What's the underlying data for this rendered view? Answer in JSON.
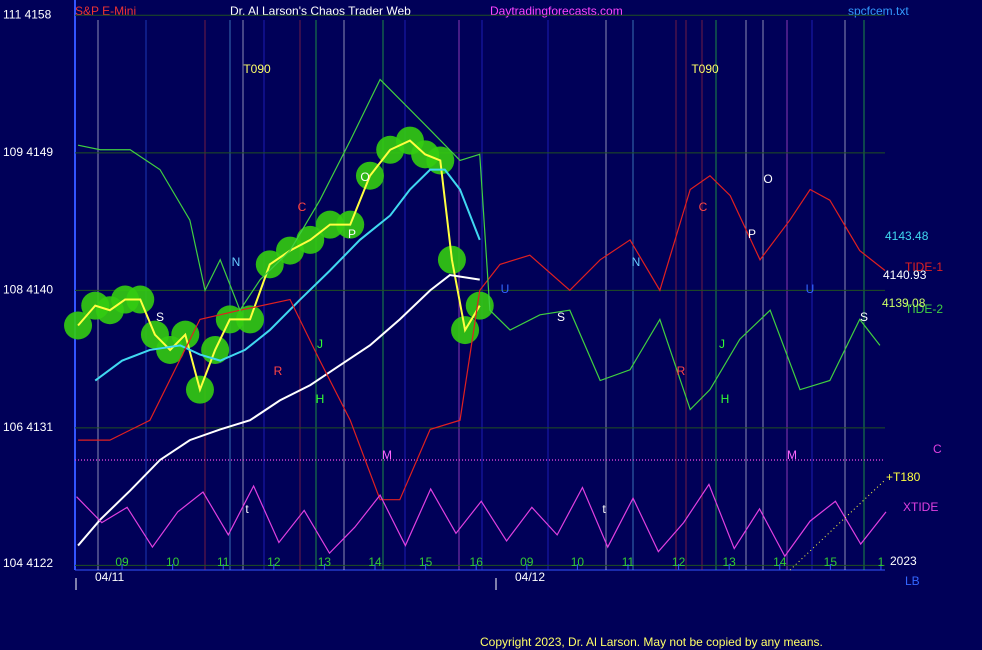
{
  "header": {
    "symbol": "S&P E-Mini",
    "title": "Dr. Al Larson's Chaos Trader Web",
    "site": "Daytradingforecasts.com",
    "file": "spcfcem.txt"
  },
  "footer": "Copyright 2023, Dr. Al Larson. May not be copied by any means.",
  "chart_data": {
    "type": "line",
    "xlim": [
      -0.93,
      15.08
    ],
    "xticks": [
      {
        "value": 0,
        "label": "09"
      },
      {
        "value": 1,
        "label": "10"
      },
      {
        "value": 2,
        "label": "11"
      },
      {
        "value": 3,
        "label": "12"
      },
      {
        "value": 4,
        "label": "13"
      },
      {
        "value": 5,
        "label": "14"
      },
      {
        "value": 6,
        "label": "15"
      },
      {
        "value": 7,
        "label": "16"
      },
      {
        "value": 8,
        "label": "09"
      },
      {
        "value": 9,
        "label": "10"
      },
      {
        "value": 10,
        "label": "11"
      },
      {
        "value": 11,
        "label": "12"
      },
      {
        "value": 12,
        "label": "13"
      },
      {
        "value": 13,
        "label": "14"
      },
      {
        "value": 14,
        "label": "15"
      },
      {
        "value": 15,
        "label": "1"
      }
    ],
    "dates": [
      "04/11",
      "04/12"
    ],
    "ylim": [
      4121.7,
      4159
    ],
    "yticks": [
      {
        "value": 4158,
        "label": "111  4158"
      },
      {
        "value": 4149,
        "label": "109  4149"
      },
      {
        "value": 4140,
        "label": "108  4140"
      },
      {
        "value": 4131,
        "label": "106  4131"
      },
      {
        "value": 4122,
        "label": "104  4122"
      }
    ],
    "grid": true,
    "reference_line": {
      "value": 4128.9,
      "color": "#d040d0"
    },
    "series": [
      {
        "color": "#ffff40",
        "blobs": "#33cc11",
        "x": [
          -0.87,
          -0.53,
          -0.24,
          0.06,
          0.36,
          0.65,
          0.95,
          1.25,
          1.54,
          1.84,
          2.13,
          2.53,
          2.92,
          3.32,
          3.72,
          4.11,
          4.51,
          4.9,
          5.3,
          5.69,
          5.99,
          6.29,
          6.52,
          6.78,
          7.07
        ],
        "values": [
          4137.7,
          4139.0,
          4138.7,
          4139.4,
          4139.4,
          4137.1,
          4136.1,
          4137.1,
          4133.5,
          4136.1,
          4138.1,
          4138.1,
          4141.7,
          4142.6,
          4143.3,
          4144.3,
          4144.3,
          4147.5,
          4149.2,
          4149.8,
          4148.9,
          4148.5,
          4142.0,
          4137.4,
          4139.0
        ]
      },
      {
        "color": "#40d8f0",
        "x": [
          -0.53,
          0,
          0.55,
          1.15,
          1.54,
          1.94,
          2.43,
          2.92,
          3.52,
          4.11,
          4.7,
          5.3,
          5.69,
          6.09,
          6.38,
          6.68,
          7.07
        ],
        "values": [
          4134.1,
          4135.4,
          4136.1,
          4136.4,
          4135.8,
          4135.4,
          4136.1,
          4137.4,
          4139.4,
          4141.3,
          4143.3,
          4144.9,
          4146.6,
          4147.9,
          4147.9,
          4146.6,
          4143.3
        ]
      },
      {
        "color": "#ffffff",
        "x": [
          -0.87,
          -0.43,
          0.16,
          0.75,
          1.34,
          1.94,
          2.53,
          3.12,
          3.72,
          4.31,
          4.9,
          5.49,
          6.09,
          6.48,
          7.07
        ],
        "values": [
          4123.3,
          4125.0,
          4126.9,
          4128.9,
          4130.2,
          4130.9,
          4131.5,
          4132.8,
          4133.8,
          4135.1,
          4136.4,
          4138.1,
          4140.0,
          4141.0,
          4140.7
        ]
      },
      {
        "name": "TIDE-1",
        "color": "#e02020",
        "x": [
          -0.87,
          -0.24,
          0.55,
          1.54,
          2.33,
          3.32,
          3.91,
          4.51,
          5.1,
          5.49,
          6.09,
          6.68,
          7.07,
          7.47,
          8.06,
          8.85,
          9.45,
          10.04,
          10.63,
          11.23,
          11.62,
          12.02,
          12.61,
          13.2,
          13.6,
          13.99,
          14.58,
          15.08
        ],
        "values": [
          4130.2,
          4130.2,
          4131.5,
          4138.1,
          4138.7,
          4139.4,
          4135.4,
          4131.5,
          4126.3,
          4126.3,
          4130.9,
          4131.5,
          4140.0,
          4141.7,
          4142.3,
          4140.0,
          4142.0,
          4143.3,
          4140.0,
          4146.6,
          4147.5,
          4146.2,
          4142.0,
          4144.6,
          4146.6,
          4145.9,
          4142.6,
          4141.3
        ]
      },
      {
        "name": "TIDE-2",
        "color": "#40d040",
        "x": [
          -0.87,
          -0.43,
          0.16,
          0.75,
          1.34,
          1.64,
          1.94,
          2.33,
          2.73,
          3.32,
          3.91,
          4.51,
          5.1,
          5.49,
          6.09,
          6.68,
          7.07,
          7.27,
          7.67,
          8.26,
          8.85,
          9.45,
          10.04,
          10.63,
          11.23,
          11.62,
          12.21,
          12.81,
          13.4,
          13.99,
          14.58,
          14.98
        ],
        "values": [
          4149.5,
          4149.2,
          4149.2,
          4147.9,
          4144.6,
          4140.0,
          4142.0,
          4138.7,
          4140.7,
          4142.6,
          4145.9,
          4149.8,
          4153.8,
          4152.5,
          4150.5,
          4148.5,
          4148.9,
          4138.7,
          4137.4,
          4138.4,
          4138.7,
          4134.1,
          4134.8,
          4138.1,
          4132.2,
          4133.5,
          4136.8,
          4138.7,
          4133.5,
          4134.1,
          4138.1,
          4136.4
        ]
      },
      {
        "name": "XTIDE",
        "color": "#e040e0",
        "x": [
          -0.9,
          -0.4,
          0.1,
          0.6,
          1.1,
          1.6,
          2.1,
          2.6,
          3.1,
          3.6,
          4.1,
          4.6,
          5.1,
          5.6,
          6.1,
          6.6,
          7.1,
          7.6,
          8.1,
          8.6,
          9.1,
          9.6,
          10.1,
          10.6,
          11.1,
          11.6,
          12.1,
          12.6,
          13.1,
          13.6,
          14.1,
          14.6,
          15.1
        ],
        "values": [
          4126.5,
          4124.8,
          4125.8,
          4123.2,
          4125.5,
          4126.8,
          4124.0,
          4127.2,
          4123.5,
          4125.6,
          4122.8,
          4124.5,
          4126.6,
          4123.3,
          4127.0,
          4124.1,
          4126.2,
          4123.6,
          4125.8,
          4124.0,
          4127.1,
          4123.2,
          4126.4,
          4122.9,
          4124.8,
          4127.3,
          4123.1,
          4125.7,
          4122.6,
          4124.9,
          4126.2,
          4123.4,
          4125.5
        ]
      }
    ],
    "planet_labels": [
      "T090",
      "T090",
      "N",
      "N",
      "J",
      "J",
      "H",
      "H",
      "S",
      "S",
      "S",
      "P",
      "P",
      "O",
      "O",
      "C",
      "C",
      "R",
      "R",
      "M",
      "M",
      "t",
      "t",
      "U",
      "U"
    ],
    "right_labels": [
      "4143.48",
      "4140.93",
      "4139.08",
      "C",
      "+T180",
      "2023",
      "LB"
    ]
  }
}
